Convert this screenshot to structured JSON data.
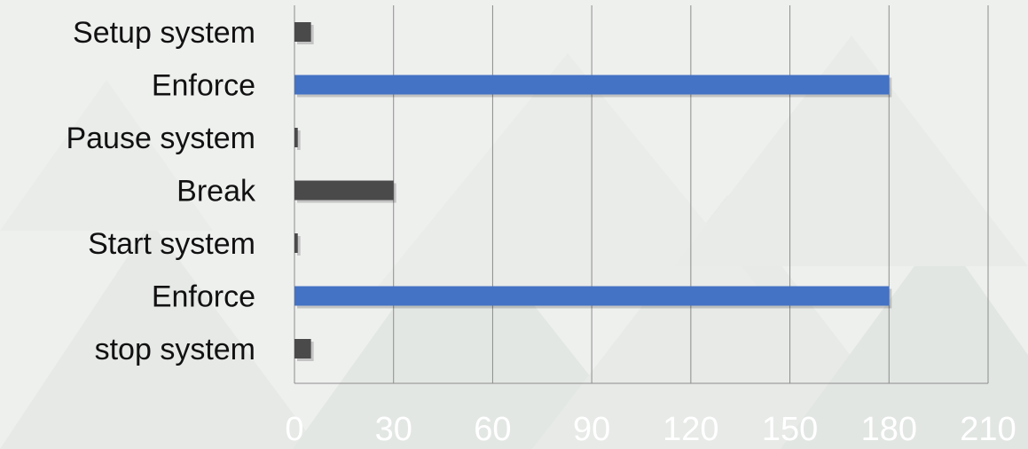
{
  "chart_data": {
    "type": "bar",
    "orientation": "horizontal",
    "categories": [
      "Setup system",
      "Enforce",
      "Pause system",
      "Break",
      "Start system",
      "Enforce",
      "stop system"
    ],
    "values": [
      5,
      180,
      1,
      30,
      1,
      180,
      5
    ],
    "bar_colors": [
      "#4a4a4a",
      "#4472c4",
      "#4a4a4a",
      "#4a4a4a",
      "#4a4a4a",
      "#4472c4",
      "#4a4a4a"
    ],
    "x_ticks": [
      "0",
      "30",
      "60",
      "90",
      "120",
      "150",
      "180",
      "210"
    ],
    "xlim": [
      0,
      210
    ],
    "xlabel": "",
    "ylabel": "",
    "title": "",
    "grid": "vertical",
    "legend": "none"
  },
  "colors": {
    "background": "#eef0ee",
    "gridline": "#8c8c8c",
    "tick_label": "#ffffff",
    "category_label": "#111111"
  }
}
